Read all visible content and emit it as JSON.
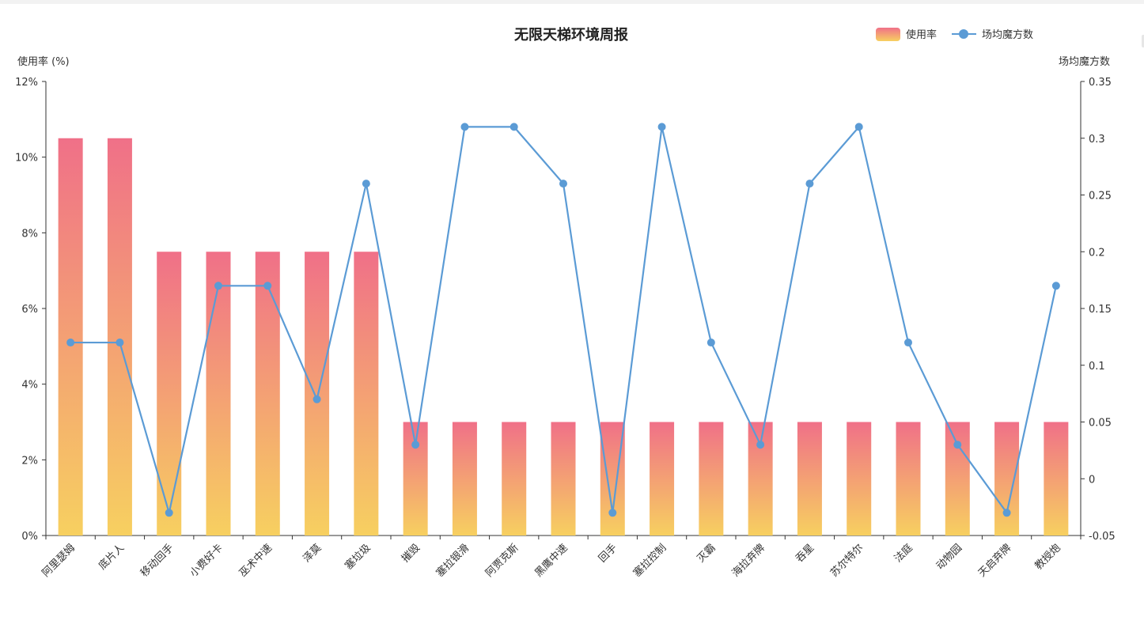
{
  "chart_data": {
    "type": "bar",
    "title": "无限天梯环境周报",
    "ylabel_left": "使用率 (%)",
    "ylabel_right": "场均魔方数",
    "categories": [
      "阿里瑟姆",
      "底片人",
      "移动回手",
      "小费好卡",
      "巫术中速",
      "泽莫",
      "塞垃圾",
      "摧毁",
      "塞拉银滑",
      "阿贾克斯",
      "黑鹰中速",
      "回手",
      "塞拉控制",
      "灭霸",
      "海拉弃牌",
      "吞星",
      "苏尔特尔",
      "法庭",
      "动物园",
      "天启弃牌",
      "教授炮"
    ],
    "series": [
      {
        "name": "使用率",
        "type": "bar",
        "axis": "left",
        "values": [
          10.5,
          10.5,
          7.5,
          7.5,
          7.5,
          7.5,
          7.5,
          3,
          3,
          3,
          3,
          3,
          3,
          3,
          3,
          3,
          3,
          3,
          3,
          3,
          3
        ]
      },
      {
        "name": "场均魔方数",
        "type": "line",
        "axis": "right",
        "values": [
          0.12,
          0.12,
          -0.03,
          0.17,
          0.17,
          0.07,
          0.26,
          0.03,
          0.31,
          0.31,
          0.26,
          -0.03,
          0.31,
          0.12,
          0.03,
          0.26,
          0.31,
          0.12,
          0.03,
          -0.03,
          0.17
        ]
      }
    ],
    "ylim_left": [
      0,
      12
    ],
    "ylim_right": [
      -0.05,
      0.35
    ],
    "yticks_left": [
      "0%",
      "2%",
      "4%",
      "6%",
      "8%",
      "10%",
      "12%"
    ],
    "yticks_right": [
      "-0.05",
      "0",
      "0.05",
      "0.1",
      "0.15",
      "0.2",
      "0.25",
      "0.3",
      "0.35"
    ],
    "legend_position": "top-right",
    "grid": false,
    "colors": {
      "bar_top": "#f07088",
      "bar_bottom": "#f7d060",
      "line": "#5b9bd5",
      "axis": "#333333"
    }
  }
}
